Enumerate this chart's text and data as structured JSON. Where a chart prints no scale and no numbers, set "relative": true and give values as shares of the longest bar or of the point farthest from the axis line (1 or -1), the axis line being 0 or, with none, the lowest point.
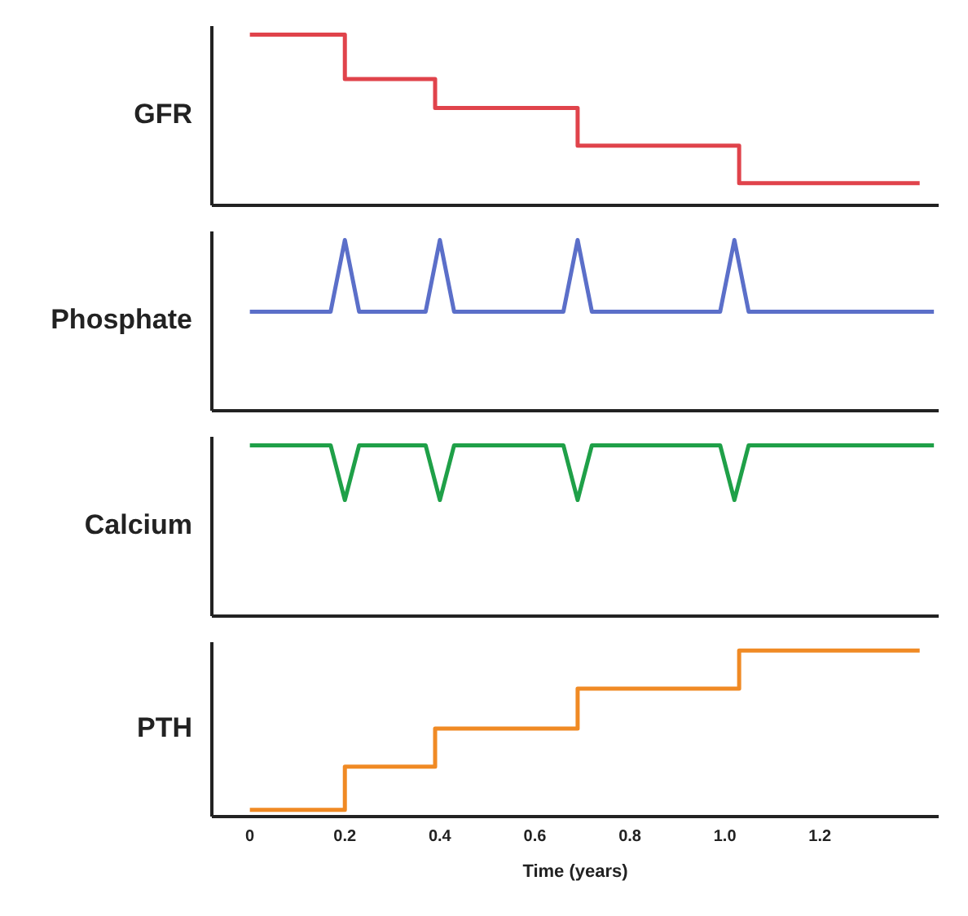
{
  "chart_data": [
    {
      "type": "step",
      "ylabel": "GFR",
      "relative": true,
      "tick_labels": false,
      "xlim": [
        -0.08,
        1.45
      ],
      "x": [
        0,
        0.2,
        0.39,
        0.69,
        1.03,
        1.41
      ],
      "series": [
        {
          "color": "#e0434b",
          "values": [
            1,
            0.74,
            0.57,
            0.35,
            0.13,
            0.13
          ]
        }
      ]
    },
    {
      "type": "line",
      "ylabel": "Phosphate",
      "relative": true,
      "tick_labels": false,
      "xlim": [
        -0.08,
        1.45
      ],
      "x": [
        0,
        0.17,
        0.2,
        0.23,
        0.37,
        0.4,
        0.43,
        0.66,
        0.69,
        0.72,
        0.99,
        1.02,
        1.05,
        1.44
      ],
      "series": [
        {
          "color": "#5b6fc9",
          "values": [
            0.58,
            0.58,
            1,
            0.58,
            0.58,
            1,
            0.58,
            0.58,
            1,
            0.58,
            0.58,
            1,
            0.58,
            0.58
          ]
        }
      ]
    },
    {
      "type": "line",
      "ylabel": "Calcium",
      "relative": true,
      "tick_labels": false,
      "xlim": [
        -0.08,
        1.45
      ],
      "x": [
        0,
        0.17,
        0.2,
        0.23,
        0.37,
        0.4,
        0.43,
        0.66,
        0.69,
        0.72,
        0.99,
        1.02,
        1.05,
        1.44
      ],
      "series": [
        {
          "color": "#1fa048",
          "values": [
            1,
            1,
            0.68,
            1,
            1,
            0.68,
            1,
            1,
            0.68,
            1,
            1,
            0.68,
            1,
            1
          ]
        }
      ]
    },
    {
      "type": "step",
      "ylabel": "PTH",
      "xlabel": "Time (years)",
      "relative": true,
      "tick_labels": "x",
      "xlim": [
        -0.08,
        1.45
      ],
      "xticks": [
        0,
        0.2,
        0.4,
        0.6,
        0.8,
        {
          "value": 1,
          "label": "1.0"
        },
        1.2
      ],
      "x": [
        0,
        0.2,
        0.39,
        0.69,
        1.03,
        1.41
      ],
      "series": [
        {
          "color": "#f08a24",
          "values": [
            0.04,
            0.3,
            0.53,
            0.77,
            1,
            1
          ]
        }
      ]
    }
  ]
}
